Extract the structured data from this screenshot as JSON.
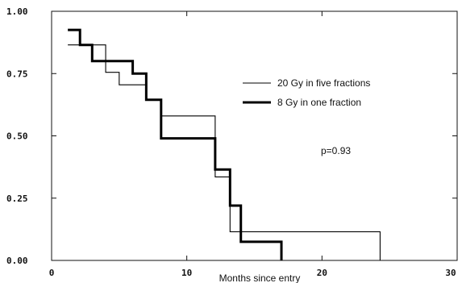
{
  "chart_data": {
    "type": "line",
    "step": true,
    "xlabel": "Months since entry",
    "ylabel": "",
    "xlim": [
      0,
      30
    ],
    "ylim": [
      0,
      1
    ],
    "x_ticks": [
      "0",
      "10",
      "20",
      "30"
    ],
    "y_ticks": [
      "0.00",
      "0.25",
      "0.50",
      "0.75",
      "1.00"
    ],
    "legend_position": "upper-right",
    "series": [
      {
        "name": "20 Gy in five fractions",
        "line_style": "thin",
        "color": "#000000",
        "x": [
          1.2,
          3.0,
          4.0,
          5.0,
          7.0,
          8.1,
          12.1,
          12.6,
          13.2,
          24.3,
          24.3
        ],
        "y": [
          0.865,
          0.865,
          0.755,
          0.705,
          0.645,
          0.58,
          0.335,
          0.335,
          0.115,
          0.115,
          0.0
        ]
      },
      {
        "name": "8 Gy in one fraction",
        "line_style": "thick",
        "color": "#000000",
        "x": [
          1.2,
          2.1,
          3.0,
          6.0,
          7.0,
          8.1,
          12.1,
          13.2,
          14.0,
          17.0,
          17.0
        ],
        "y": [
          0.925,
          0.865,
          0.8,
          0.75,
          0.645,
          0.49,
          0.365,
          0.22,
          0.075,
          0.075,
          0.0
        ]
      }
    ],
    "annotation": "p=0.93"
  }
}
